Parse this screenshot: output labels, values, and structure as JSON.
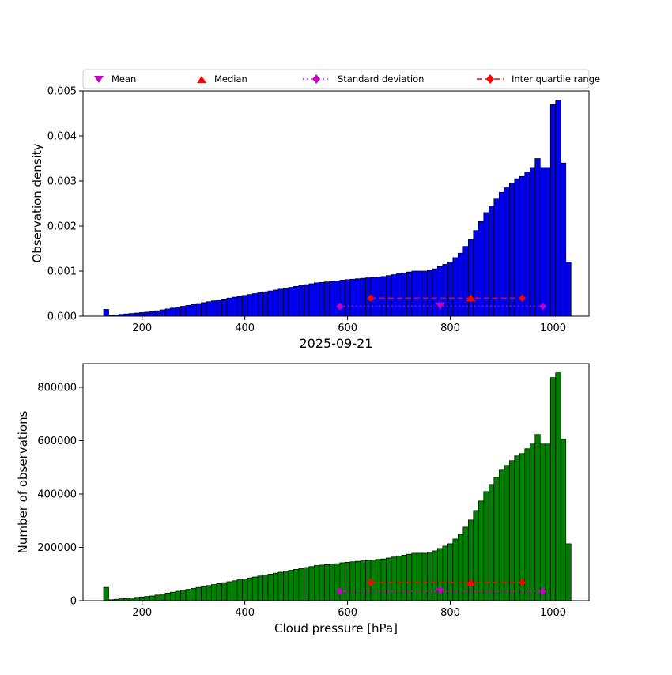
{
  "title": "2025-09-21",
  "xlabel": "Cloud pressure [hPa]",
  "accent_colors": {
    "magenta": "#c400c4",
    "red": "#ff0000"
  },
  "legend": {
    "items": [
      {
        "label": "Mean",
        "marker": "triangle-down-icon",
        "color": "#c400c4"
      },
      {
        "label": "Median",
        "marker": "triangle-up-icon",
        "color": "#ff0000"
      },
      {
        "label": "Standard deviation",
        "marker": "diamond-dotted-line-icon",
        "color": "#c400c4"
      },
      {
        "label": "Inter quartile range",
        "marker": "diamond-dashed-line-icon",
        "color": "#ff0000"
      }
    ]
  },
  "chart_data": [
    {
      "type": "bar",
      "ylabel": "Observation density",
      "bar_color": "#0000ee",
      "edge_color": "#000000",
      "xlim": [
        85,
        1070
      ],
      "ylim": [
        0,
        0.005
      ],
      "yticks": [
        0,
        0.001,
        0.002,
        0.003,
        0.004,
        0.005
      ],
      "ytick_labels": [
        "0.000",
        "0.001",
        "0.002",
        "0.003",
        "0.004",
        "0.005"
      ],
      "xticks": [
        200,
        400,
        600,
        800,
        1000
      ],
      "bin_start": 130,
      "bin_width": 10,
      "values": [
        0.00015,
        2e-05,
        3e-05,
        4e-05,
        5e-05,
        6e-05,
        7e-05,
        8e-05,
        9e-05,
        0.0001,
        0.00012,
        0.00014,
        0.00016,
        0.00018,
        0.0002,
        0.00022,
        0.00024,
        0.00026,
        0.00028,
        0.0003,
        0.00032,
        0.00034,
        0.00036,
        0.00038,
        0.0004,
        0.00042,
        0.00044,
        0.00046,
        0.00048,
        0.0005,
        0.00052,
        0.00054,
        0.00056,
        0.00058,
        0.0006,
        0.00062,
        0.00064,
        0.00066,
        0.00068,
        0.0007,
        0.00072,
        0.00074,
        0.00075,
        0.00076,
        0.00077,
        0.00078,
        0.0008,
        0.00081,
        0.00082,
        0.00083,
        0.00084,
        0.00085,
        0.00086,
        0.00087,
        0.00088,
        0.0009,
        0.00092,
        0.00094,
        0.00096,
        0.00098,
        0.001,
        0.001,
        0.001,
        0.00102,
        0.00105,
        0.0011,
        0.00115,
        0.0012,
        0.0013,
        0.0014,
        0.00155,
        0.0017,
        0.0019,
        0.0021,
        0.0023,
        0.00245,
        0.0026,
        0.00275,
        0.00285,
        0.00295,
        0.00305,
        0.0031,
        0.0032,
        0.0033,
        0.0035,
        0.0033,
        0.0033,
        0.0047,
        0.0048,
        0.0034,
        0.0012
      ],
      "stats": {
        "mean": 780,
        "median": 840,
        "std_low": 585,
        "std_high": 980,
        "iqr_low": 645,
        "iqr_high": 940,
        "marker_y_mean": 0.00022,
        "marker_y_median": 0.0004
      }
    },
    {
      "type": "bar",
      "ylabel": "Number of observations",
      "bar_color": "#008000",
      "edge_color": "#000000",
      "xlim": [
        85,
        1070
      ],
      "ylim": [
        0,
        888889
      ],
      "yticks": [
        0,
        200000,
        400000,
        600000,
        800000
      ],
      "ytick_labels": [
        "0",
        "200000",
        "400000",
        "600000",
        "800000"
      ],
      "xticks": [
        200,
        400,
        600,
        800,
        1000
      ],
      "bin_start": 130,
      "bin_width": 10,
      "values": [
        50000,
        3600,
        5300,
        7100,
        8900,
        10700,
        12500,
        14200,
        16000,
        17800,
        21400,
        24900,
        28500,
        32000,
        35600,
        39200,
        42700,
        46300,
        49800,
        53400,
        57000,
        60500,
        64100,
        67600,
        71200,
        74800,
        78300,
        81900,
        85400,
        89000,
        92600,
        96100,
        99700,
        103200,
        106800,
        110400,
        113900,
        117500,
        121000,
        124600,
        128200,
        131700,
        133500,
        135300,
        137100,
        138800,
        142400,
        144200,
        146000,
        147700,
        149500,
        151300,
        153100,
        154900,
        156600,
        160200,
        163800,
        167300,
        170900,
        174400,
        178000,
        178000,
        178000,
        181600,
        186900,
        195800,
        204700,
        213600,
        231400,
        249200,
        275900,
        302600,
        338200,
        373800,
        409400,
        436100,
        462800,
        489500,
        507300,
        525100,
        542900,
        551800,
        569600,
        587400,
        623000,
        587400,
        587400,
        836600,
        854400,
        605200,
        213600
      ],
      "stats": {
        "mean": 780,
        "median": 840,
        "std_low": 585,
        "std_high": 980,
        "iqr_low": 645,
        "iqr_high": 940,
        "marker_y_mean": 35000,
        "marker_y_median": 68000
      }
    }
  ]
}
